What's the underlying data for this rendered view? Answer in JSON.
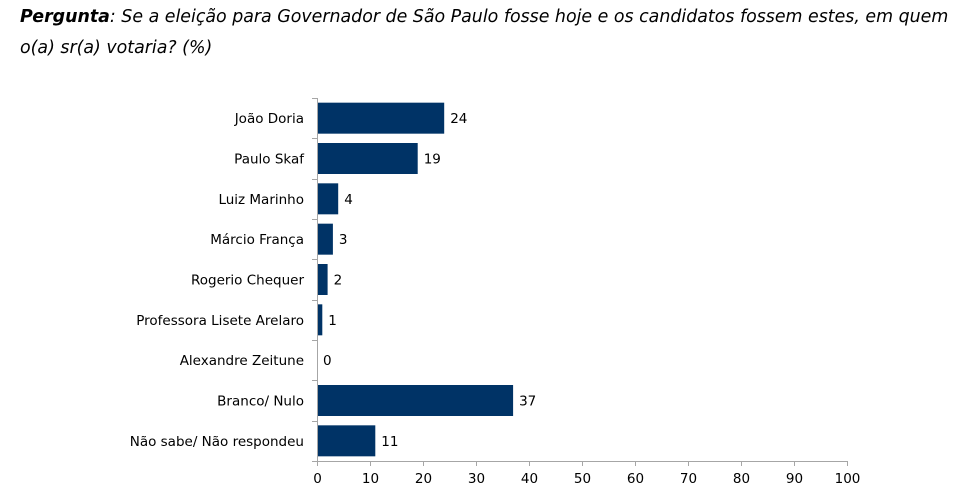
{
  "question": {
    "label": "Pergunta",
    "text": ": Se a eleição para Governador de São Paulo fosse hoje e os candidatos fossem estes, em quem o(a) sr(a) votaria? (%)"
  },
  "colors": {
    "bar": "#003366",
    "axis": "#a6a6a6",
    "text": "#000000"
  },
  "chart_data": {
    "type": "bar",
    "orientation": "horizontal",
    "categories": [
      "João Doria",
      "Paulo Skaf",
      "Luiz Marinho",
      "Márcio França",
      "Rogerio Chequer",
      "Professora Lisete Arelaro",
      "Alexandre Zeitune",
      "Branco/ Nulo",
      "Não sabe/ Não respondeu"
    ],
    "values": [
      24,
      19,
      4,
      3,
      2,
      1,
      0,
      37,
      11
    ],
    "value_labels": [
      "24",
      "19",
      "4",
      "3",
      "2",
      "1",
      "0",
      "37",
      "11"
    ],
    "xlim": [
      0,
      100
    ],
    "xticks": [
      0,
      10,
      20,
      30,
      40,
      50,
      60,
      70,
      80,
      90,
      100
    ],
    "xtick_labels": [
      "0",
      "10",
      "20",
      "30",
      "40",
      "50",
      "60",
      "70",
      "80",
      "90",
      "100"
    ],
    "grid": false,
    "legend": "none"
  }
}
